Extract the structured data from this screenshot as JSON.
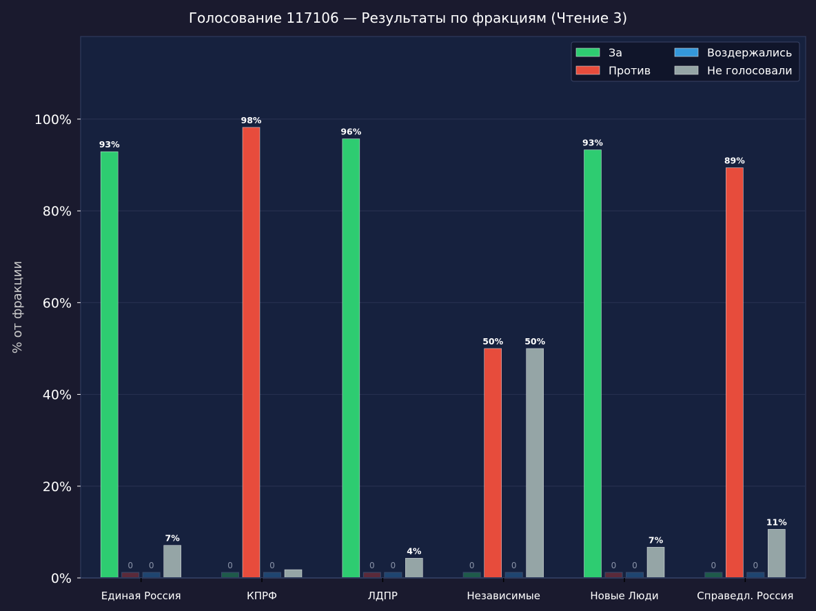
{
  "chart_data": {
    "type": "bar",
    "title": "Голосование 117106 — Результаты по фракциям  (Чтение 3)",
    "xlabel": "",
    "ylabel": "% от фракции",
    "ylim": [
      0,
      118
    ],
    "yticks": [
      0,
      20,
      40,
      60,
      80,
      100
    ],
    "ytick_labels": [
      "0%",
      "20%",
      "40%",
      "60%",
      "80%",
      "100%"
    ],
    "grid": true,
    "legend_position": "top-right",
    "categories": [
      "Единая Россия",
      "КПРФ",
      "ЛДПР",
      "Независимые",
      "Новые Люди",
      "Справедл. Россия"
    ],
    "series": [
      {
        "name": "За",
        "color": "#2ecc71",
        "zero_color": "#1e5a4a",
        "values": [
          92.9,
          0,
          95.7,
          0,
          93.3,
          0
        ],
        "labels": [
          "93%",
          "0",
          "96%",
          "0",
          "93%",
          "0"
        ]
      },
      {
        "name": "Против",
        "color": "#e74c3c",
        "zero_color": "#5a2a3a",
        "values": [
          0,
          98.2,
          0,
          50,
          0,
          89.4
        ],
        "labels": [
          "0",
          "98%",
          "0",
          "50%",
          "0",
          "89%"
        ]
      },
      {
        "name": "Воздержались",
        "color": "#3498db",
        "zero_color": "#1f4570",
        "values": [
          0,
          0,
          0,
          0,
          0,
          0
        ],
        "labels": [
          "0",
          "0",
          "0",
          "0",
          "0",
          "0"
        ]
      },
      {
        "name": "Не голосовали",
        "color": "#95a5a6",
        "zero_color": "#4a5560",
        "values": [
          7.1,
          1.8,
          4.3,
          50,
          6.7,
          10.6
        ],
        "labels": [
          "7%",
          "",
          "4%",
          "50%",
          "7%",
          "11%"
        ]
      }
    ]
  },
  "colors": {
    "background": "#1a1a2e",
    "plot_background": "#16213e",
    "text": "#ffffff"
  }
}
